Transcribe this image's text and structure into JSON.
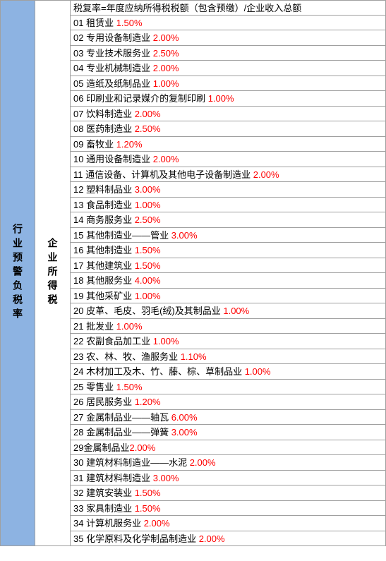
{
  "leftLabel": "行业预警负税率",
  "midLabel": "企业所得税",
  "headerText": "税复率=年度应纳所得税税额（包含预缴）/企业收入总额",
  "rows": [
    {
      "num": "01",
      "name": "租赁业",
      "rate": "1.50%"
    },
    {
      "num": "02",
      "name": "专用设备制造业",
      "rate": "2.00%"
    },
    {
      "num": "03",
      "name": "专业技术服务业",
      "rate": "2.50%"
    },
    {
      "num": "04",
      "name": "专业机械制造业",
      "rate": "2.00%"
    },
    {
      "num": "05",
      "name": "造纸及纸制品业",
      "rate": "1.00%"
    },
    {
      "num": "06",
      "name": "印刷业和记录媒介的复制印刷",
      "rate": "1.00%"
    },
    {
      "num": "07",
      "name": "饮料制造业",
      "rate": "2.00%"
    },
    {
      "num": "08",
      "name": "医药制造业",
      "rate": "2.50%"
    },
    {
      "num": "09",
      "name": "畜牧业",
      "rate": "1.20%"
    },
    {
      "num": "10",
      "name": "通用设备制造业",
      "rate": "2.00%"
    },
    {
      "num": "11",
      "name": "通信设备、计算机及其他电子设备制造业",
      "rate": "2.00%"
    },
    {
      "num": "12",
      "name": "塑料制品业",
      "rate": "3.00%"
    },
    {
      "num": "13",
      "name": "食品制造业",
      "rate": "1.00%"
    },
    {
      "num": "14",
      "name": "商务服务业",
      "rate": "2.50%"
    },
    {
      "num": "15",
      "name": "其他制造业——管业",
      "rate": "3.00%"
    },
    {
      "num": "16",
      "name": "其他制造业",
      "rate": "1.50%"
    },
    {
      "num": "17",
      "name": "其他建筑业",
      "rate": "1.50%"
    },
    {
      "num": "18",
      "name": "其他服务业",
      "rate": "4.00%"
    },
    {
      "num": "19",
      "name": "其他采矿业",
      "rate": "1.00%"
    },
    {
      "num": "20",
      "name": "皮革、毛皮、羽毛(绒)及其制品业",
      "rate": "1.00%"
    },
    {
      "num": "21",
      "name": "批发业",
      "rate": "1.00%"
    },
    {
      "num": "22",
      "name": "农副食品加工业",
      "rate": "1.00%"
    },
    {
      "num": "23",
      "name": "农、林、牧、渔服务业",
      "rate": "1.10%"
    },
    {
      "num": "24",
      "name": "木材加工及木、竹、藤、棕、草制品业",
      "rate": "1.00%"
    },
    {
      "num": "25",
      "name": "零售业",
      "rate": "1.50%"
    },
    {
      "num": "26",
      "name": "居民服务业",
      "rate": "1.20%"
    },
    {
      "num": "27",
      "name": "金属制品业——轴瓦",
      "rate": "6.00%"
    },
    {
      "num": "28",
      "name": "金属制品业——弹簧",
      "rate": "3.00%"
    },
    {
      "num": "29",
      "name": "金属制品业",
      "rate": "2.00%",
      "nospace": true
    },
    {
      "num": "30",
      "name": "建筑材料制造业——水泥",
      "rate": "2.00%"
    },
    {
      "num": "31",
      "name": "建筑材料制造业",
      "rate": "3.00%"
    },
    {
      "num": "32",
      "name": "建筑安装业",
      "rate": "1.50%"
    },
    {
      "num": "33",
      "name": "家具制造业",
      "rate": "1.50%"
    },
    {
      "num": "34",
      "name": "计算机服务业",
      "rate": "2.00%"
    },
    {
      "num": "35",
      "name": "化学原料及化学制品制造业",
      "rate": "2.00%"
    }
  ],
  "colors": {
    "leftBg": "#8db3e2",
    "rateColor": "#ff0000",
    "textColor": "#000000",
    "borderColor": "#a0a0a0"
  }
}
